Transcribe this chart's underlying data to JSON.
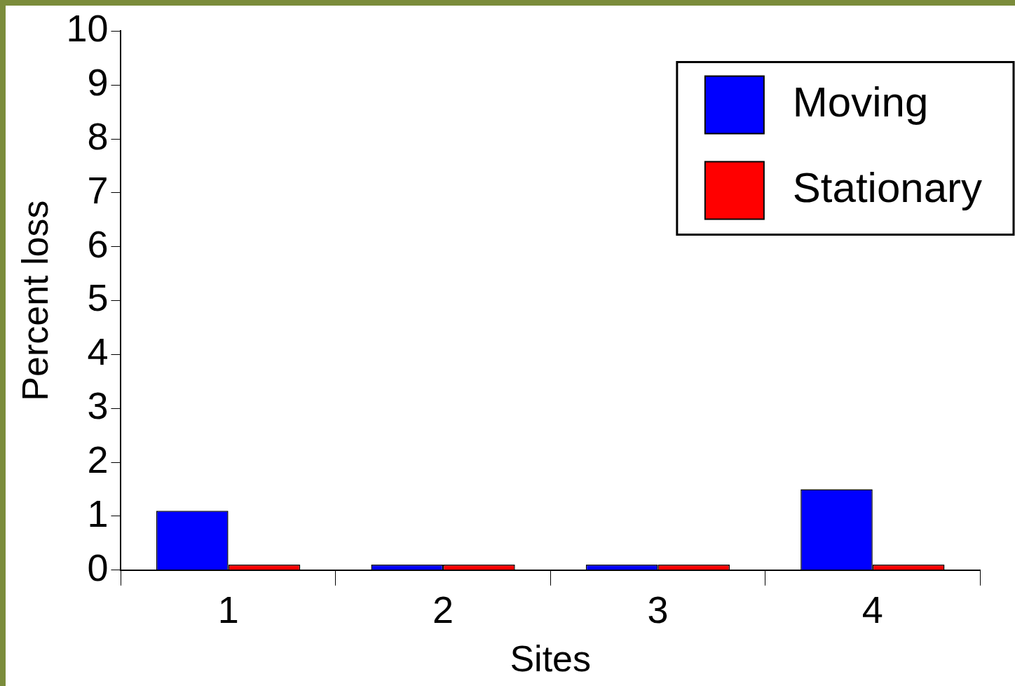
{
  "chart_data": {
    "type": "bar",
    "xlabel": "Sites",
    "ylabel": "Percent loss",
    "categories": [
      "1",
      "2",
      "3",
      "4"
    ],
    "series": [
      {
        "name": "Moving",
        "color": "#0000ff",
        "values": [
          1.1,
          0.1,
          0.1,
          1.5
        ]
      },
      {
        "name": "Stationary",
        "color": "#ff0000",
        "values": [
          0.1,
          0.1,
          0.1,
          0.1
        ]
      }
    ],
    "ylim": [
      0,
      10
    ],
    "yticks": [
      0,
      1,
      2,
      3,
      4,
      5,
      6,
      7,
      8,
      9,
      10
    ],
    "grid": false,
    "legend": "top right"
  }
}
